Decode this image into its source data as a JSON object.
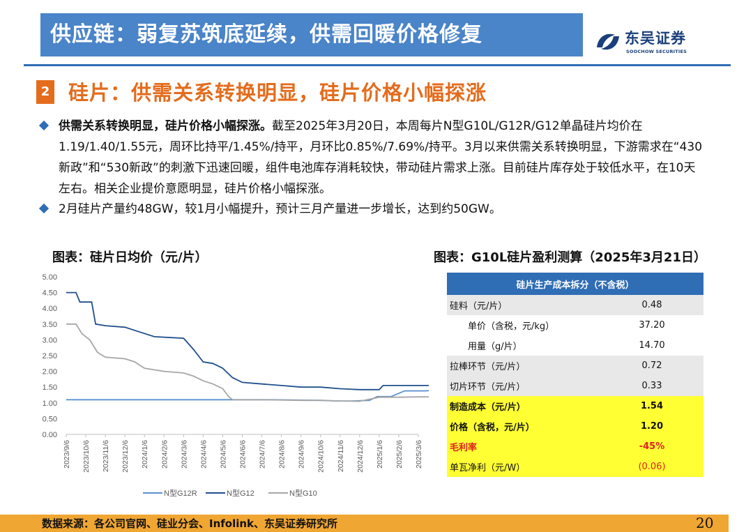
{
  "header": {
    "title": "供应链：弱复苏筑底延续，供需回暖价格修复",
    "logo_cn": "东吴证券",
    "logo_en": "SOOCHOW SECURITIES"
  },
  "section": {
    "number": "2",
    "title": "硅片：供需关系转换明显，硅片价格小幅探涨"
  },
  "bullets": [
    {
      "bold": "供需关系转换明显，硅片价格小幅探涨。",
      "text": "截至2025年3月20日，本周每片N型G10L/G12R/G12单晶硅片均价在1.19/1.40/1.55元，周环比持平/1.45%/持平，月环比0.85%/7.69%/持平。3月以来供需关系转换明显，下游需求在“430新政”和“530新政”的刺激下迅速回暖，组件电池库存消耗较快，带动硅片需求上涨。目前硅片库存处于较低水平，在10天左右。相关企业提价意愿明显，硅片价格小幅探涨。"
    },
    {
      "bold": "",
      "text": "2月硅片产量约48GW，较1月小幅提升，预计三月产量进一步增长，达到约50GW。"
    }
  ],
  "chart_caption": "图表：硅片日均价（元/片）",
  "table_caption": "图表：G10L硅片盈利测算（2025年3月21日）",
  "chart_data": {
    "type": "line",
    "ylim": [
      0,
      5
    ],
    "yticks": [
      "0.00",
      "0.50",
      "1.00",
      "1.50",
      "2.00",
      "2.50",
      "3.00",
      "3.50",
      "4.00",
      "4.50",
      "5.00"
    ],
    "xticks": [
      "2023/9/6",
      "2023/10/6",
      "2023/11/6",
      "2023/12/6",
      "2024/1/6",
      "2024/2/6",
      "2024/3/6",
      "2024/4/6",
      "2024/5/6",
      "2024/6/6",
      "2024/7/6",
      "2024/8/6",
      "2024/9/6",
      "2024/10/6",
      "2024/11/6",
      "2024/12/6",
      "2025/1/6",
      "2025/2/6",
      "2025/3/6"
    ],
    "grid": false,
    "legend_position": "bottom",
    "series": [
      {
        "name": "N型G12R",
        "color": "#5a8fd0",
        "points": [
          [
            0,
            1.1
          ],
          [
            1.5,
            1.1
          ],
          [
            2.5,
            1.1
          ],
          [
            4.5,
            1.1
          ],
          [
            7.5,
            1.1
          ],
          [
            10.5,
            1.1
          ],
          [
            13,
            1.08
          ],
          [
            13.8,
            1.06
          ],
          [
            14.6,
            1.06
          ],
          [
            15.5,
            1.08
          ],
          [
            15.9,
            1.2
          ],
          [
            16.6,
            1.2
          ],
          [
            17.3,
            1.38
          ],
          [
            17.8,
            1.38
          ],
          [
            18.3,
            1.38
          ],
          [
            19,
            1.4
          ]
        ]
      },
      {
        "name": "N型G12",
        "color": "#1f4e8c",
        "points": [
          [
            0,
            4.5
          ],
          [
            0.5,
            4.5
          ],
          [
            0.7,
            4.2
          ],
          [
            1.3,
            4.2
          ],
          [
            1.5,
            3.5
          ],
          [
            2,
            3.45
          ],
          [
            3,
            3.4
          ],
          [
            3.5,
            3.3
          ],
          [
            4.5,
            3.1
          ],
          [
            6,
            3.05
          ],
          [
            6.5,
            2.7
          ],
          [
            7,
            2.3
          ],
          [
            7.5,
            2.25
          ],
          [
            8,
            2.1
          ],
          [
            8.5,
            1.8
          ],
          [
            9,
            1.65
          ],
          [
            10,
            1.6
          ],
          [
            11,
            1.55
          ],
          [
            12,
            1.5
          ],
          [
            13,
            1.5
          ],
          [
            14,
            1.45
          ],
          [
            15,
            1.42
          ],
          [
            16,
            1.42
          ],
          [
            16.2,
            1.55
          ],
          [
            17,
            1.55
          ],
          [
            18,
            1.55
          ],
          [
            19,
            1.55
          ]
        ]
      },
      {
        "name": "N型G10",
        "color": "#a6a6a6",
        "points": [
          [
            0,
            3.5
          ],
          [
            0.5,
            3.5
          ],
          [
            0.8,
            3.2
          ],
          [
            1.2,
            3.0
          ],
          [
            1.6,
            2.6
          ],
          [
            2,
            2.45
          ],
          [
            3,
            2.4
          ],
          [
            3.5,
            2.3
          ],
          [
            4,
            2.1
          ],
          [
            5,
            2.0
          ],
          [
            6,
            1.95
          ],
          [
            6.5,
            1.85
          ],
          [
            7,
            1.7
          ],
          [
            7.5,
            1.6
          ],
          [
            8,
            1.45
          ],
          [
            8.3,
            1.2
          ],
          [
            8.5,
            1.1
          ],
          [
            10,
            1.1
          ],
          [
            12,
            1.08
          ],
          [
            13,
            1.08
          ],
          [
            14,
            1.06
          ],
          [
            15,
            1.05
          ],
          [
            16,
            1.18
          ],
          [
            17,
            1.18
          ],
          [
            18,
            1.19
          ],
          [
            19,
            1.19
          ]
        ]
      }
    ]
  },
  "cost_table": {
    "header": "硅片生产成本拆分（不含税）",
    "rows": [
      {
        "label": "硅料（元/片）",
        "value": "0.48",
        "style": "gray"
      },
      {
        "label": "单价（含税，元/kg）",
        "value": "37.20",
        "style": "white-sub"
      },
      {
        "label": "用量（g/片）",
        "value": "14.70",
        "style": "white-sub"
      },
      {
        "label": "拉棒环节（元/片）",
        "value": "0.72",
        "style": "gray"
      },
      {
        "label": "切片环节（元/片）",
        "value": "0.33",
        "style": "gray"
      },
      {
        "label": "制造成本（元/片）",
        "value": "1.54",
        "style": "yel"
      },
      {
        "label": "价格（含税，元/片）",
        "value": "1.20",
        "style": "yel"
      },
      {
        "label": "毛利率",
        "value": "-45%",
        "style": "yel-red"
      },
      {
        "label": "单瓦净利（元/W）",
        "value": "(0.06)",
        "style": "yel-neg"
      }
    ]
  },
  "footer": {
    "source": "数据来源：各公司官网、硅业分会、Infolink、东吴证券研究所",
    "page": "20"
  }
}
